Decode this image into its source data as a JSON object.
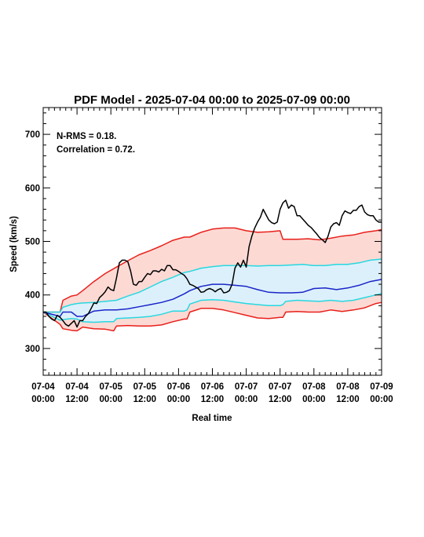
{
  "chart_data": {
    "type": "line",
    "title": "PDF Model - 2025-07-04 00:00 to 2025-07-09 00:00",
    "xlabel": "Real time",
    "ylabel": "Speed (km/s)",
    "annotations": [
      "N-RMS = 0.18.",
      "Correlation = 0.72."
    ],
    "xlim": [
      0,
      120
    ],
    "ylim": [
      250,
      750
    ],
    "x_unit": "hours since 07-04 00:00",
    "x_ticks": [
      {
        "h": 0,
        "line1": "07-04",
        "line2": "00:00"
      },
      {
        "h": 12,
        "line1": "07-04",
        "line2": "12:00"
      },
      {
        "h": 24,
        "line1": "07-05",
        "line2": "00:00"
      },
      {
        "h": 36,
        "line1": "07-05",
        "line2": "12:00"
      },
      {
        "h": 48,
        "line1": "07-06",
        "line2": "00:00"
      },
      {
        "h": 60,
        "line1": "07-06",
        "line2": "12:00"
      },
      {
        "h": 72,
        "line1": "07-07",
        "line2": "00:00"
      },
      {
        "h": 84,
        "line1": "07-07",
        "line2": "12:00"
      },
      {
        "h": 96,
        "line1": "07-08",
        "line2": "00:00"
      },
      {
        "h": 108,
        "line1": "07-08",
        "line2": "12:00"
      },
      {
        "h": 120,
        "line1": "07-09",
        "line2": "00:00"
      }
    ],
    "y_ticks": [
      300,
      400,
      500,
      600,
      700
    ],
    "series": [
      {
        "role": "outer_upper",
        "color": "#e8201a",
        "x": [
          0,
          6,
          7,
          10,
          12,
          14,
          18,
          22,
          26,
          30,
          34,
          38,
          42,
          46,
          50,
          52,
          56,
          60,
          64,
          68,
          72,
          76,
          80,
          84,
          85,
          86,
          90,
          94,
          98,
          102,
          106,
          110,
          114,
          118,
          120
        ],
        "y": [
          368,
          368,
          390,
          398,
          400,
          408,
          425,
          440,
          452,
          464,
          475,
          483,
          492,
          502,
          508,
          508,
          517,
          523,
          525,
          525,
          520,
          517,
          518,
          520,
          504,
          504,
          504,
          505,
          503,
          506,
          510,
          512,
          517,
          520,
          522
        ]
      },
      {
        "role": "inner_upper",
        "color": "#27d8e0",
        "x": [
          0,
          6,
          7,
          10,
          12,
          14,
          18,
          22,
          26,
          30,
          34,
          38,
          42,
          46,
          50,
          52,
          56,
          60,
          64,
          68,
          72,
          76,
          80,
          84,
          88,
          92,
          96,
          100,
          104,
          108,
          112,
          116,
          120
        ],
        "y": [
          368,
          368,
          377,
          382,
          384,
          385,
          386,
          388,
          390,
          398,
          405,
          415,
          425,
          433,
          442,
          444,
          450,
          453,
          455,
          455,
          455,
          454,
          455,
          455,
          456,
          457,
          455,
          455,
          457,
          457,
          460,
          465,
          467
        ]
      },
      {
        "role": "median",
        "color": "#1a25c8",
        "x": [
          0,
          6,
          7,
          10,
          12,
          14,
          18,
          22,
          24,
          26,
          30,
          34,
          38,
          42,
          46,
          50,
          52,
          56,
          60,
          64,
          68,
          72,
          76,
          80,
          84,
          88,
          92,
          96,
          100,
          104,
          108,
          112,
          116,
          120
        ],
        "y": [
          368,
          360,
          368,
          368,
          360,
          360,
          370,
          372,
          372,
          372,
          374,
          378,
          382,
          386,
          392,
          402,
          408,
          416,
          420,
          420,
          418,
          416,
          410,
          405,
          404,
          404,
          405,
          412,
          413,
          410,
          413,
          418,
          425,
          429
        ]
      },
      {
        "role": "inner_lower",
        "color": "#27d8e0",
        "x": [
          0,
          6,
          7,
          10,
          12,
          14,
          18,
          22,
          25,
          26,
          30,
          34,
          38,
          42,
          46,
          50,
          51,
          52,
          56,
          60,
          64,
          68,
          72,
          76,
          80,
          84,
          85,
          86,
          90,
          94,
          98,
          102,
          106,
          110,
          114,
          118,
          120
        ],
        "y": [
          368,
          353,
          354,
          356,
          355,
          350,
          349,
          350,
          350,
          356,
          357,
          358,
          360,
          364,
          370,
          370,
          372,
          383,
          390,
          391,
          390,
          387,
          384,
          382,
          380,
          380,
          382,
          388,
          390,
          389,
          388,
          390,
          388,
          390,
          395,
          400,
          403
        ]
      },
      {
        "role": "outer_lower",
        "color": "#e8201a",
        "x": [
          0,
          6,
          7,
          10,
          12,
          14,
          18,
          22,
          25,
          26,
          30,
          34,
          38,
          42,
          46,
          50,
          51,
          52,
          56,
          60,
          64,
          68,
          72,
          76,
          80,
          84,
          85,
          86,
          90,
          94,
          98,
          102,
          106,
          110,
          114,
          118,
          120
        ],
        "y": [
          368,
          345,
          337,
          334,
          333,
          340,
          337,
          336,
          333,
          342,
          343,
          342,
          342,
          344,
          350,
          355,
          355,
          368,
          375,
          375,
          372,
          367,
          362,
          357,
          356,
          358,
          358,
          368,
          369,
          368,
          368,
          372,
          369,
          372,
          376,
          384,
          386
        ]
      },
      {
        "role": "observed",
        "color": "#000000",
        "x": [
          0,
          1,
          2,
          3,
          4,
          5,
          6,
          7,
          8,
          9,
          10,
          11,
          12,
          13,
          14,
          15,
          16,
          17,
          18,
          19,
          20,
          21,
          22,
          23,
          24,
          25,
          26,
          27,
          28,
          29,
          30,
          31,
          32,
          33,
          34,
          35,
          36,
          37,
          38,
          39,
          40,
          41,
          42,
          43,
          44,
          45,
          46,
          47,
          48,
          49,
          50,
          51,
          52,
          53,
          54,
          55,
          56,
          57,
          58,
          59,
          60,
          61,
          62,
          63,
          64,
          65,
          66,
          67,
          68,
          69,
          70,
          71,
          72,
          73,
          74,
          75,
          76,
          77,
          78,
          79,
          80,
          81,
          82,
          83,
          84,
          85,
          86,
          87,
          88,
          89,
          90,
          91,
          92,
          93,
          94,
          95,
          96,
          97,
          98,
          99,
          100,
          101,
          102,
          103,
          104,
          105,
          106,
          107,
          108,
          109,
          110,
          111,
          112,
          113,
          114,
          115,
          116,
          117,
          118,
          119,
          120
        ],
        "y": [
          368,
          368,
          360,
          355,
          352,
          362,
          358,
          352,
          345,
          342,
          347,
          352,
          340,
          352,
          352,
          360,
          365,
          375,
          385,
          384,
          395,
          400,
          406,
          415,
          410,
          408,
          432,
          460,
          465,
          465,
          462,
          445,
          420,
          418,
          425,
          425,
          433,
          440,
          438,
          445,
          445,
          443,
          448,
          445,
          455,
          455,
          447,
          447,
          444,
          440,
          437,
          430,
          420,
          418,
          415,
          412,
          405,
          406,
          410,
          412,
          410,
          406,
          410,
          412,
          404,
          405,
          408,
          420,
          450,
          460,
          452,
          465,
          452,
          490,
          510,
          525,
          536,
          545,
          560,
          550,
          540,
          535,
          533,
          536,
          560,
          572,
          577,
          562,
          568,
          565,
          548,
          548,
          542,
          536,
          530,
          526,
          520,
          514,
          507,
          503,
          498,
          510,
          527,
          533,
          535,
          530,
          548,
          557,
          554,
          552,
          558,
          558,
          565,
          568,
          555,
          550,
          548,
          548,
          540,
          536,
          536
        ]
      }
    ]
  }
}
